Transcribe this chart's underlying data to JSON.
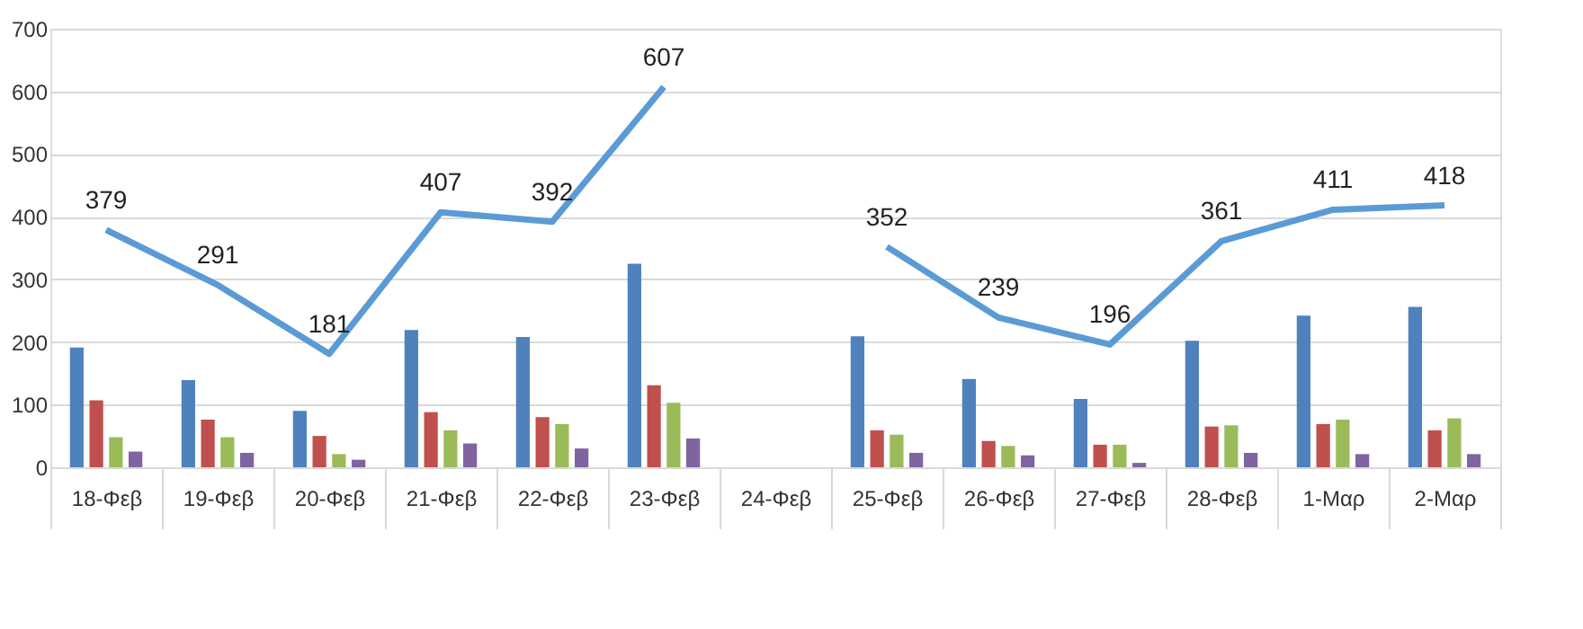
{
  "chart_data": {
    "type": "bar",
    "categories": [
      "18-Φεβ",
      "19-Φεβ",
      "20-Φεβ",
      "21-Φεβ",
      "22-Φεβ",
      "23-Φεβ",
      "24-Φεβ",
      "25-Φεβ",
      "26-Φεβ",
      "27-Φεβ",
      "28-Φεβ",
      "1-Μαρ",
      "2-Μαρ"
    ],
    "series": [
      {
        "color": "#4f81bd",
        "values": [
          191,
          139,
          90,
          219,
          208,
          325,
          null,
          209,
          141,
          109,
          202,
          242,
          256
        ]
      },
      {
        "color": "#c0504d",
        "values": [
          107,
          76,
          50,
          88,
          80,
          131,
          null,
          59,
          42,
          36,
          65,
          69,
          59
        ]
      },
      {
        "color": "#9bbb59",
        "values": [
          48,
          48,
          21,
          59,
          69,
          103,
          null,
          52,
          34,
          36,
          67,
          76,
          78
        ]
      },
      {
        "color": "#8064a2",
        "values": [
          25,
          23,
          12,
          38,
          30,
          46,
          null,
          23,
          19,
          7,
          23,
          21,
          21
        ]
      },
      {
        "type": "line",
        "color": "#5b9bd5",
        "values": [
          379,
          291,
          181,
          407,
          392,
          607,
          null,
          352,
          239,
          196,
          361,
          411,
          418
        ],
        "value_labels": [
          "379",
          "291",
          "181",
          "407",
          "392",
          "607",
          null,
          "352",
          "239",
          "196",
          "361",
          "411",
          "418"
        ]
      }
    ],
    "ylim": [
      0,
      700
    ],
    "yticks": [
      0,
      100,
      200,
      300,
      400,
      500,
      600,
      700
    ],
    "grid": "y",
    "legend": false
  }
}
